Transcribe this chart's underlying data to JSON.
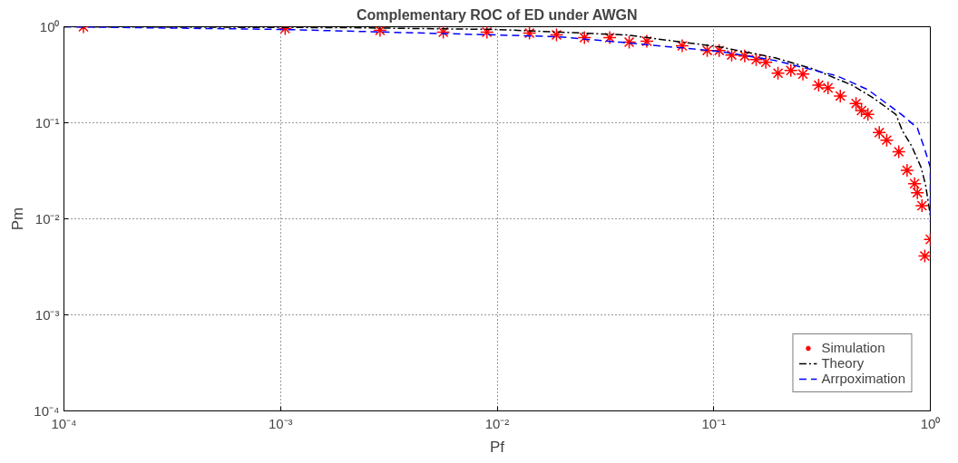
{
  "chart_data": {
    "type": "line",
    "title": "Complementary ROC of ED under AWGN",
    "xlabel": "Pf",
    "ylabel": "Pm",
    "log": "xy",
    "xlim": [
      0.0001,
      1
    ],
    "ylim": [
      0.0001,
      1
    ],
    "xticks": [
      {
        "value": 0.0001,
        "label": "10⁻⁴"
      },
      {
        "value": 0.001,
        "label": "10⁻³"
      },
      {
        "value": 0.01,
        "label": "10⁻²"
      },
      {
        "value": 0.1,
        "label": "10⁻¹"
      },
      {
        "value": 1,
        "label": "10⁰"
      }
    ],
    "yticks": [
      {
        "value": 0.0001,
        "label": "10⁻⁴"
      },
      {
        "value": 0.001,
        "label": "10⁻³"
      },
      {
        "value": 0.01,
        "label": "10⁻²"
      },
      {
        "value": 0.1,
        "label": "10⁻¹"
      },
      {
        "value": 1,
        "label": "10⁰"
      }
    ],
    "grid": true,
    "legend": "bottom right",
    "series": [
      {
        "name": "Simulation",
        "type": "scatter",
        "marker": "cross",
        "color": "#ff0000",
        "x": [
          0.000123,
          0.00105,
          0.00288,
          0.00564,
          0.00897,
          0.0141,
          0.0188,
          0.0253,
          0.0331,
          0.0407,
          0.0491,
          0.0715,
          0.0933,
          0.106,
          0.121,
          0.139,
          0.157,
          0.174,
          0.198,
          0.227,
          0.258,
          0.305,
          0.337,
          0.384,
          0.454,
          0.481,
          0.515,
          0.581,
          0.629,
          0.715,
          0.781,
          0.846,
          0.871,
          0.915,
          1.0,
          0.943
        ],
        "values": [
          1.0,
          0.957,
          0.916,
          0.877,
          0.877,
          0.858,
          0.821,
          0.769,
          0.769,
          0.69,
          0.705,
          0.632,
          0.566,
          0.566,
          0.508,
          0.497,
          0.455,
          0.426,
          0.328,
          0.35,
          0.321,
          0.246,
          0.231,
          0.19,
          0.159,
          0.134,
          0.122,
          0.079,
          0.066,
          0.05,
          0.032,
          0.0232,
          0.0187,
          0.0137,
          0.0061,
          0.0041
        ]
      },
      {
        "name": "Theory",
        "line_style": "dashdot",
        "color": "#000000",
        "x": [
          0.0001,
          0.00204,
          0.0099,
          0.0395,
          0.106,
          0.192,
          0.285,
          0.436,
          0.552,
          0.694,
          0.743,
          0.821,
          0.906,
          0.952,
          1.0
        ],
        "values": [
          1.0,
          0.978,
          0.937,
          0.821,
          0.618,
          0.475,
          0.366,
          0.246,
          0.178,
          0.122,
          0.0826,
          0.0569,
          0.0344,
          0.0222,
          0.0108
        ]
      },
      {
        "name": "Arrpoximation",
        "line_style": "dashed",
        "color": "#0000ff",
        "x": [
          0.0001,
          0.00102,
          0.0099,
          0.0192,
          0.0369,
          0.106,
          0.192,
          0.372,
          0.515,
          0.743,
          0.871,
          0.933,
          1.0,
          1.0
        ],
        "values": [
          1.0,
          0.937,
          0.821,
          0.786,
          0.69,
          0.554,
          0.445,
          0.307,
          0.221,
          0.12,
          0.0881,
          0.0569,
          0.0344,
          0.0093
        ]
      }
    ]
  }
}
